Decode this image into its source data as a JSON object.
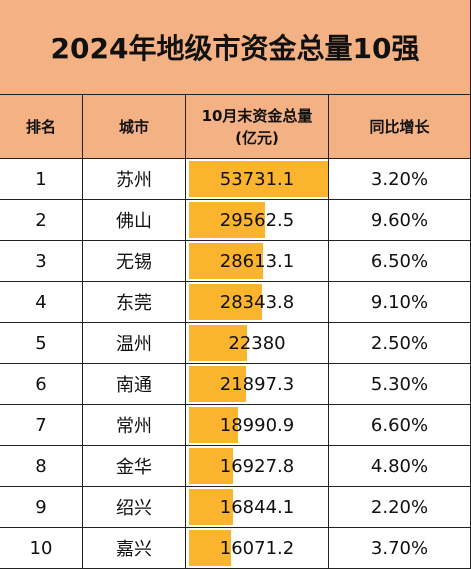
{
  "title": "2024年地级市资金总量10强",
  "headers": {
    "rank": "排名",
    "city": "城市",
    "amount_line1": "10月末资金总量",
    "amount_line2": "(亿元)",
    "growth": "同比增长"
  },
  "colors": {
    "header_bg": "#f4b184",
    "bar": "#fbb42d"
  },
  "chart_data": {
    "type": "table",
    "title": "2024年地级市资金总量10强",
    "columns": [
      "排名",
      "城市",
      "10月末资金总量(亿元)",
      "同比增长"
    ],
    "bar_max": 53731.1,
    "rows": [
      {
        "rank": "1",
        "city": "苏州",
        "amount": "53731.1",
        "amount_value": 53731.1,
        "growth": "3.20%"
      },
      {
        "rank": "2",
        "city": "佛山",
        "amount": "29562.5",
        "amount_value": 29562.5,
        "growth": "9.60%"
      },
      {
        "rank": "3",
        "city": "无锡",
        "amount": "28613.1",
        "amount_value": 28613.1,
        "growth": "6.50%"
      },
      {
        "rank": "4",
        "city": "东莞",
        "amount": "28343.8",
        "amount_value": 28343.8,
        "growth": "9.10%"
      },
      {
        "rank": "5",
        "city": "温州",
        "amount": "22380",
        "amount_value": 22380,
        "growth": "2.50%"
      },
      {
        "rank": "6",
        "city": "南通",
        "amount": "21897.3",
        "amount_value": 21897.3,
        "growth": "5.30%"
      },
      {
        "rank": "7",
        "city": "常州",
        "amount": "18990.9",
        "amount_value": 18990.9,
        "growth": "6.60%"
      },
      {
        "rank": "8",
        "city": "金华",
        "amount": "16927.8",
        "amount_value": 16927.8,
        "growth": "4.80%"
      },
      {
        "rank": "9",
        "city": "绍兴",
        "amount": "16844.1",
        "amount_value": 16844.1,
        "growth": "2.20%"
      },
      {
        "rank": "10",
        "city": "嘉兴",
        "amount": "16071.2",
        "amount_value": 16071.2,
        "growth": "3.70%"
      }
    ]
  }
}
